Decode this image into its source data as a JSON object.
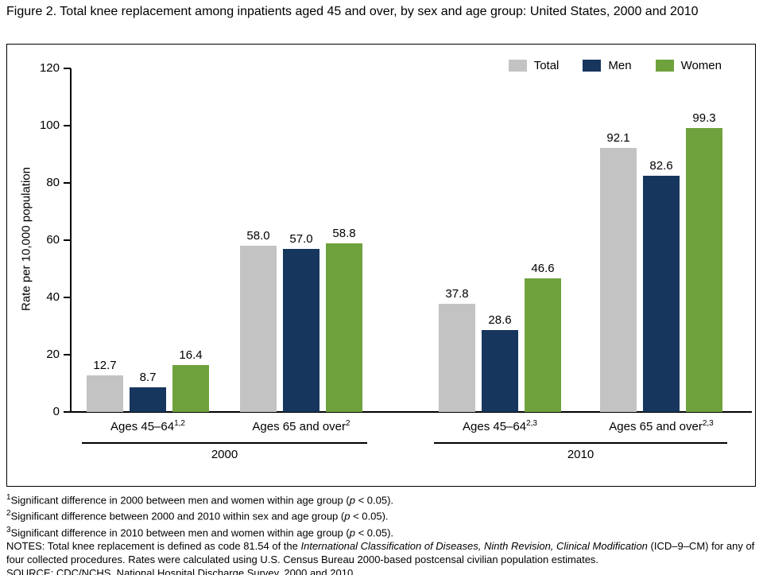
{
  "title": "Figure 2. Total knee replacement among inpatients aged 45 and over, by sex and age group: United States, 2000 and 2010",
  "chart_data": {
    "type": "bar",
    "title": "Total knee replacement among inpatients aged 45 and over, by sex and age group: United States, 2000 and 2010",
    "ylabel": "Rate per 10,000 population",
    "xlabel": "",
    "ylim": [
      0,
      120
    ],
    "yticks": [
      0,
      20,
      40,
      60,
      80,
      100,
      120
    ],
    "grid": false,
    "legend_position": "top-right",
    "series": [
      {
        "name": "Total",
        "color": "#c3c3c3",
        "values": [
          12.7,
          58.0,
          37.8,
          92.1
        ]
      },
      {
        "name": "Men",
        "color": "#17365d",
        "values": [
          8.7,
          57.0,
          28.6,
          82.6
        ]
      },
      {
        "name": "Women",
        "color": "#6fa23d",
        "values": [
          16.4,
          58.8,
          46.6,
          99.3
        ]
      }
    ],
    "categories": [
      {
        "label": "Ages 45–64",
        "sup": "1,2",
        "year": "2000"
      },
      {
        "label": "Ages 65 and over",
        "sup": "2",
        "year": "2000"
      },
      {
        "label": "Ages 45–64",
        "sup": "2,3",
        "year": "2010"
      },
      {
        "label": "Ages 65 and over",
        "sup": "2,3",
        "year": "2010"
      }
    ],
    "year_groups": [
      {
        "label": "2000",
        "categories": [
          0,
          1
        ]
      },
      {
        "label": "2010",
        "categories": [
          2,
          3
        ]
      }
    ]
  },
  "footnotes": [
    [
      {
        "t": "1",
        "s": "sup"
      },
      {
        "t": "Significant difference in 2000 between men and women within age group ("
      },
      {
        "t": "p",
        "s": "i"
      },
      {
        "t": " < 0.05)."
      }
    ],
    [
      {
        "t": "2",
        "s": "sup"
      },
      {
        "t": "Significant difference between 2000 and 2010 within sex and age group ("
      },
      {
        "t": "p",
        "s": "i"
      },
      {
        "t": " < 0.05)."
      }
    ],
    [
      {
        "t": "3",
        "s": "sup"
      },
      {
        "t": "Significant difference in 2010 between men and women within age group ("
      },
      {
        "t": "p",
        "s": "i"
      },
      {
        "t": " < 0.05)."
      }
    ],
    [
      {
        "t": "NOTES: Total knee replacement is defined as code 81.54 of the "
      },
      {
        "t": "International Classification of Diseases, Ninth Revision, Clinical Modification",
        "s": "i"
      },
      {
        "t": " (ICD–9–CM) for any of four collected procedures. Rates were calculated using U.S. Census Bureau 2000-based postcensal civilian population estimates."
      }
    ],
    [
      {
        "t": "SOURCE: CDC/NCHS, National Hospital Discharge Survey, 2000 and 2010."
      }
    ]
  ]
}
